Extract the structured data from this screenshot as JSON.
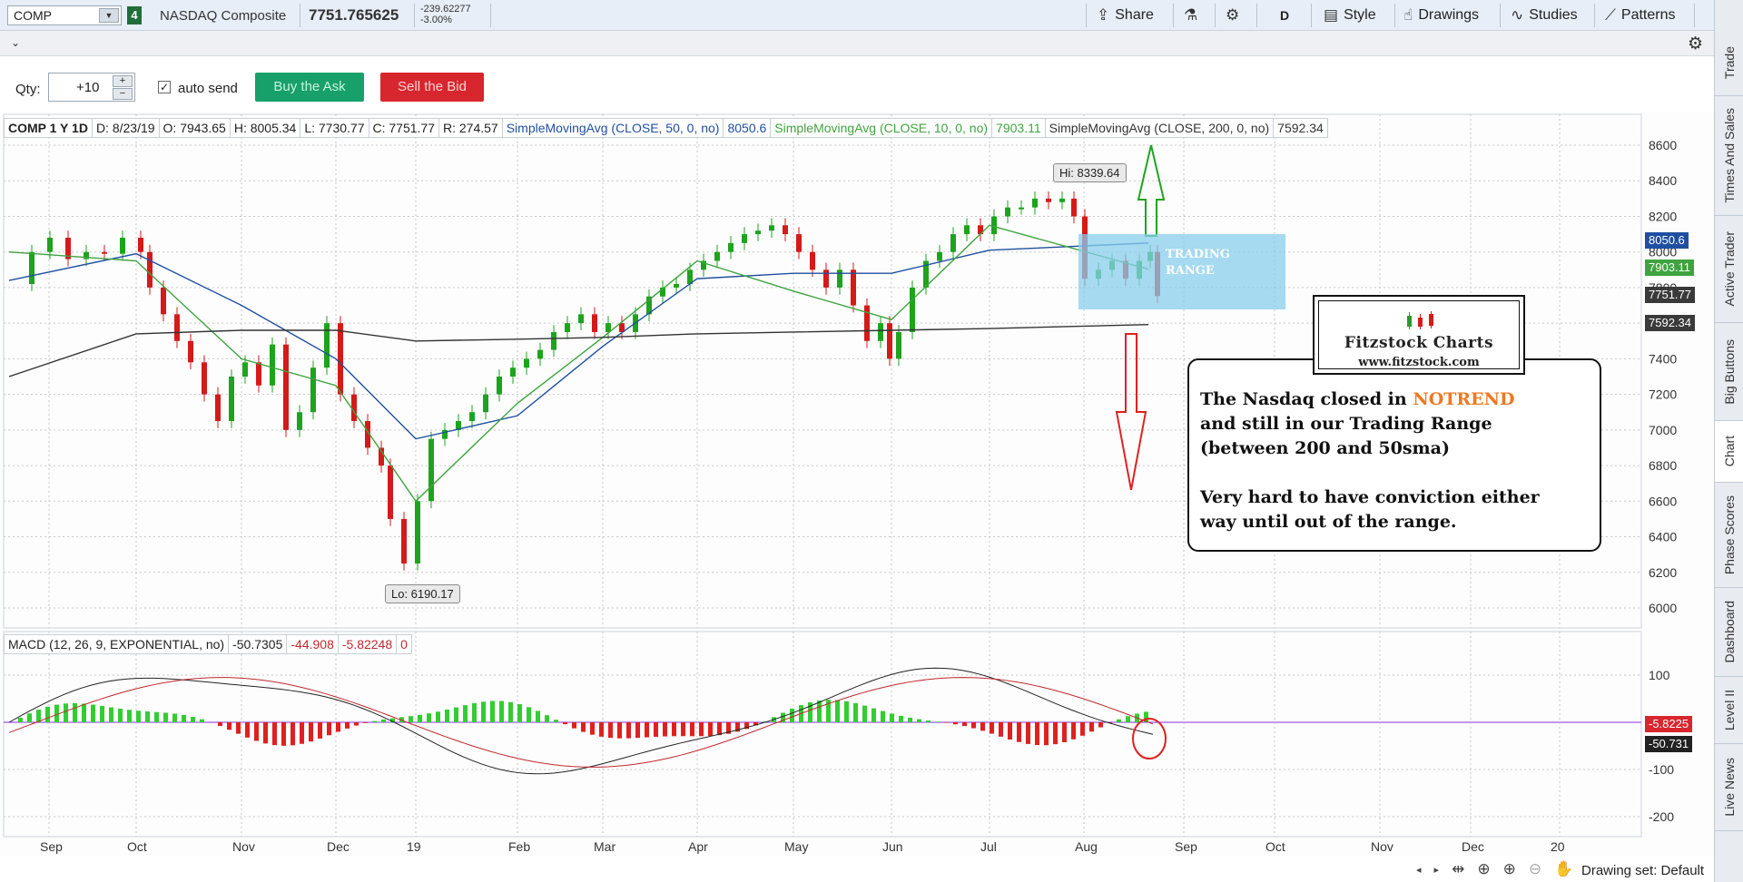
{
  "symbol": {
    "ticker": "COMP",
    "link_number": "4",
    "name": "NASDAQ Composite",
    "price": "7751.765625",
    "change": "-239.62277",
    "change_pct": "-3.00%"
  },
  "toolbar": {
    "share": "Share",
    "period": "D",
    "style": "Style",
    "drawings": "Drawings",
    "studies": "Studies",
    "patterns": "Patterns"
  },
  "order": {
    "qty_label": "Qty:",
    "qty_value": "+10",
    "auto_send": "auto send",
    "buy": "Buy the Ask",
    "sell": "Sell the Bid"
  },
  "legend": {
    "title": "COMP 1 Y 1D",
    "date": "D: 8/23/19",
    "open": "O: 7943.65",
    "high": "H: 8005.34",
    "low": "L: 7730.77",
    "close": "C: 7751.77",
    "range": "R: 274.57",
    "sma50_label": "SimpleMovingAvg (CLOSE, 50, 0, no)",
    "sma50_value": "8050.6",
    "sma10_label": "SimpleMovingAvg (CLOSE, 10, 0, no)",
    "sma10_value": "7903.11",
    "sma200_label": "SimpleMovingAvg (CLOSE, 200, 0, no)",
    "sma200_value": "7592.34"
  },
  "macd_legend": {
    "label": "MACD (12, 26, 9, EXPONENTIAL, no)",
    "value": "-50.7305",
    "avg": "-44.908",
    "diff": "-5.82248",
    "zero": "0"
  },
  "price_tags": {
    "sma50": "8050.6",
    "sma10": "7903.11",
    "last": "7751.77",
    "sma200": "7592.34",
    "macd_diff": "-5.8225",
    "macd_value": "-50.731"
  },
  "hi_label": "Hi: 8339.64",
  "lo_label": "Lo: 6190.17",
  "price_axis": [
    "8600",
    "8400",
    "8200",
    "8000",
    "7800",
    "7600",
    "7400",
    "7200",
    "7000",
    "6800",
    "6600",
    "6400",
    "6200",
    "6000"
  ],
  "macd_axis": [
    "100",
    "0",
    "-100",
    "-200"
  ],
  "time_axis": [
    "Sep",
    "Oct",
    "Nov",
    "Dec",
    "19",
    "Feb",
    "Mar",
    "Apr",
    "May",
    "Jun",
    "Jul",
    "Aug",
    "Sep",
    "Oct",
    "Nov",
    "Dec",
    "20"
  ],
  "annotations": {
    "trading_range_1": "TRADING",
    "trading_range_2": "RANGE",
    "logo_title": "Fitzstock Charts",
    "logo_url": "www.fitzstock.com",
    "note_line1_a": "The Nasdaq closed in ",
    "note_line1_b": "NOTREND",
    "note_line2": "and still in our Trading Range",
    "note_line3": "(between 200 and 50sma)",
    "note_line4": "Very hard to have conviction either",
    "note_line5": "way until out of the range."
  },
  "bottom": {
    "drawing_set": "Drawing set: Default"
  },
  "side_tabs": [
    "Trade",
    "Times And Sales",
    "Active Trader",
    "Big Buttons",
    "Chart",
    "Phase Scores",
    "Dashboard",
    "Level II",
    "Live News"
  ],
  "colors": {
    "sma50": "#1f4fa0",
    "sma10": "#3fa33f",
    "sma200": "#333333",
    "up": "#1ea31e",
    "down": "#d41a1a",
    "buy": "#18a06a",
    "sell": "#d8262e",
    "annotation": "#f07820"
  },
  "chart_data": {
    "type": "line",
    "title": "COMP 1 Y 1D",
    "ylim": [
      6000,
      8600
    ],
    "x": [
      "Sep",
      "Oct",
      "Nov",
      "Dec",
      "19",
      "Feb",
      "Mar",
      "Apr",
      "May",
      "Jun",
      "Jul",
      "Aug"
    ],
    "series": [
      {
        "name": "SimpleMovingAvg (CLOSE, 50, 0, no)",
        "values": [
          7950,
          8000,
          7700,
          7300,
          6950,
          7050,
          7500,
          7900,
          7950,
          7850,
          8000,
          8050.6
        ]
      },
      {
        "name": "SimpleMovingAvg (CLOSE, 10, 0, no)",
        "values": [
          8050,
          7950,
          7400,
          7250,
          6500,
          7200,
          7550,
          7950,
          7700,
          7600,
          8200,
          7903.11
        ]
      },
      {
        "name": "SimpleMovingAvg (CLOSE, 200, 0, no)",
        "values": [
          7350,
          7550,
          7560,
          7560,
          7510,
          7510,
          7520,
          7540,
          7555,
          7555,
          7560,
          7592.34
        ]
      }
    ],
    "hi": 8339.64,
    "lo": 6190.17
  }
}
